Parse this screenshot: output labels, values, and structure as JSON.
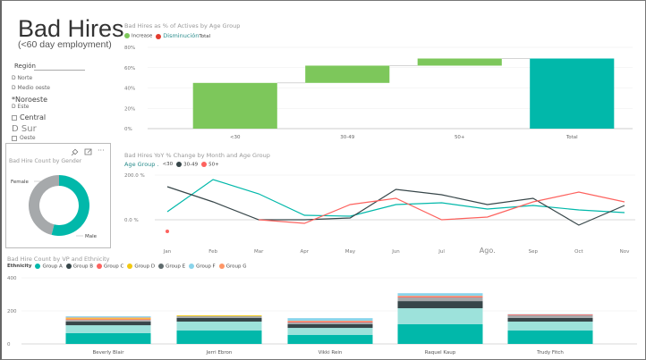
{
  "header": {
    "title": "Bad Hires",
    "subtitle": "(<60 day employment)"
  },
  "slicer": {
    "title": "Región",
    "items": [
      {
        "label": "D Norte",
        "style": "small"
      },
      {
        "label": "D Medio oeste",
        "style": "small"
      },
      {
        "label": "*Noroeste",
        "style": "big"
      },
      {
        "label": "D Este",
        "style": "small"
      },
      {
        "label": "Central",
        "style": "big",
        "checkbox": true
      },
      {
        "label": "D Sur",
        "style": "huge"
      },
      {
        "label": "Oeste",
        "style": "small",
        "checkbox": true
      }
    ]
  },
  "gender_tile": {
    "title": "Bad Hire Count by Gender",
    "icons": [
      "pin-icon",
      "focus-mode-icon",
      "more-options-icon"
    ],
    "more_label": "···",
    "labels": {
      "female": "Female",
      "male": "Male"
    }
  },
  "colors": {
    "teal": "#01B8AA",
    "dark": "#374649",
    "red": "#FD625E",
    "yellow": "#F2C80F",
    "gray": "#5F6B6D",
    "lightblue": "#8AD4EB",
    "orange": "#FE9666",
    "green": "#7DC75B",
    "lightteal": "#9DE2DB",
    "donutgray": "#A6A9AB"
  },
  "chart_data": [
    {
      "id": "waterfall",
      "type": "bar",
      "subtype": "waterfall",
      "title": "Bad Hires as % of Actives by Age Group",
      "legend": [
        {
          "label": "Increase",
          "color": "#7DC75B"
        },
        {
          "label": "Disminución",
          "color": "#E33B2E"
        },
        {
          "label": "Total",
          "color": "#01B8AA"
        }
      ],
      "categories": [
        "<30",
        "30-49",
        "50+",
        "Total"
      ],
      "start": [
        0,
        45,
        62,
        0
      ],
      "end": [
        45,
        62,
        69,
        69
      ],
      "kind": [
        "increase",
        "increase",
        "increase",
        "total"
      ],
      "ylim": [
        0,
        80
      ],
      "yticks": [
        "0%",
        "20%",
        "40%",
        "60%",
        "80%"
      ],
      "ytick_values": [
        0,
        20,
        40,
        60,
        80
      ]
    },
    {
      "id": "yoy",
      "type": "line",
      "title": "Bad Hires YoY % Change by Month and Age Group",
      "legend_title": "Age Group .",
      "x": [
        "Jan",
        "Feb",
        "Mar",
        "Apr",
        "May",
        "Jun",
        "Jul",
        "Ago.",
        "Sep",
        "Oct",
        "Nov"
      ],
      "series": [
        {
          "name": "<30",
          "color": "#01B8AA",
          "values": [
            36,
            180,
            116,
            20,
            16,
            68,
            76,
            48,
            64,
            44,
            32
          ]
        },
        {
          "name": "30-49",
          "color": "#374649",
          "values": [
            148,
            80,
            0,
            0,
            8,
            136,
            112,
            68,
            96,
            -24,
            64
          ]
        },
        {
          "name": "50+",
          "color": "#FD625E",
          "values": [
            -52,
            null,
            0,
            -16,
            68,
            96,
            0,
            12,
            80,
            124,
            80
          ]
        }
      ],
      "ylim": [
        -100,
        200
      ],
      "yticks": [
        "0.0 %",
        "200.0 %"
      ],
      "ytick_values": [
        0,
        200
      ]
    },
    {
      "id": "ethnicity",
      "type": "bar",
      "subtype": "stacked",
      "title": "Bad Hire Count by VP and Ethnicity",
      "legend_title": "Ethnicity",
      "categories": [
        "Beverly Blair",
        "Jerri Ebron",
        "Vikki Rein",
        "Raquel Kaup",
        "Trudy Fitch"
      ],
      "series": [
        {
          "name": "Group A",
          "color": "#01B8AA",
          "values": [
            65,
            81,
            54,
            119,
            81
          ]
        },
        {
          "name": "Group F",
          "color": "#9DE2DB",
          "values": [
            48,
            54,
            43,
            97,
            54
          ]
        },
        {
          "name": "Group B",
          "color": "#374649",
          "values": [
            22,
            22,
            22,
            43,
            22
          ]
        },
        {
          "name": "Group E",
          "color": "#A6A9AB",
          "values": [
            10,
            11,
            11,
            22,
            16
          ]
        },
        {
          "name": "Group C",
          "color": "#FD625E",
          "values": [
            5,
            0,
            5,
            5,
            5
          ]
        },
        {
          "name": "Group D",
          "color": "#F2C80F",
          "values": [
            5,
            5,
            0,
            0,
            0
          ]
        },
        {
          "name": "Group G",
          "color": "#FE9666",
          "values": [
            5,
            0,
            5,
            5,
            0
          ]
        },
        {
          "name": "Group lightblue",
          "legend_name": "Group F",
          "color": "#8AD4EB",
          "values": [
            7,
            0,
            16,
            16,
            2
          ]
        }
      ],
      "legend": [
        {
          "label": "Group A",
          "color": "#01B8AA"
        },
        {
          "label": "Group B",
          "color": "#374649"
        },
        {
          "label": "Group C",
          "color": "#FD625E"
        },
        {
          "label": "Group D",
          "color": "#F2C80F"
        },
        {
          "label": "Group E",
          "color": "#5F6B6D"
        },
        {
          "label": "Group F",
          "color": "#8AD4EB"
        },
        {
          "label": "Group G",
          "color": "#FE9666"
        }
      ],
      "ylim": [
        0,
        400
      ],
      "yticks": [
        "0",
        "200",
        "400"
      ],
      "ytick_values": [
        0,
        200,
        400
      ]
    },
    {
      "id": "gender",
      "type": "pie",
      "subtype": "donut",
      "title": "Bad Hire Count by Gender",
      "categories": [
        "Male",
        "Female"
      ],
      "values": [
        54,
        46
      ],
      "colors": [
        "#01B8AA",
        "#A6A9AB"
      ]
    }
  ]
}
